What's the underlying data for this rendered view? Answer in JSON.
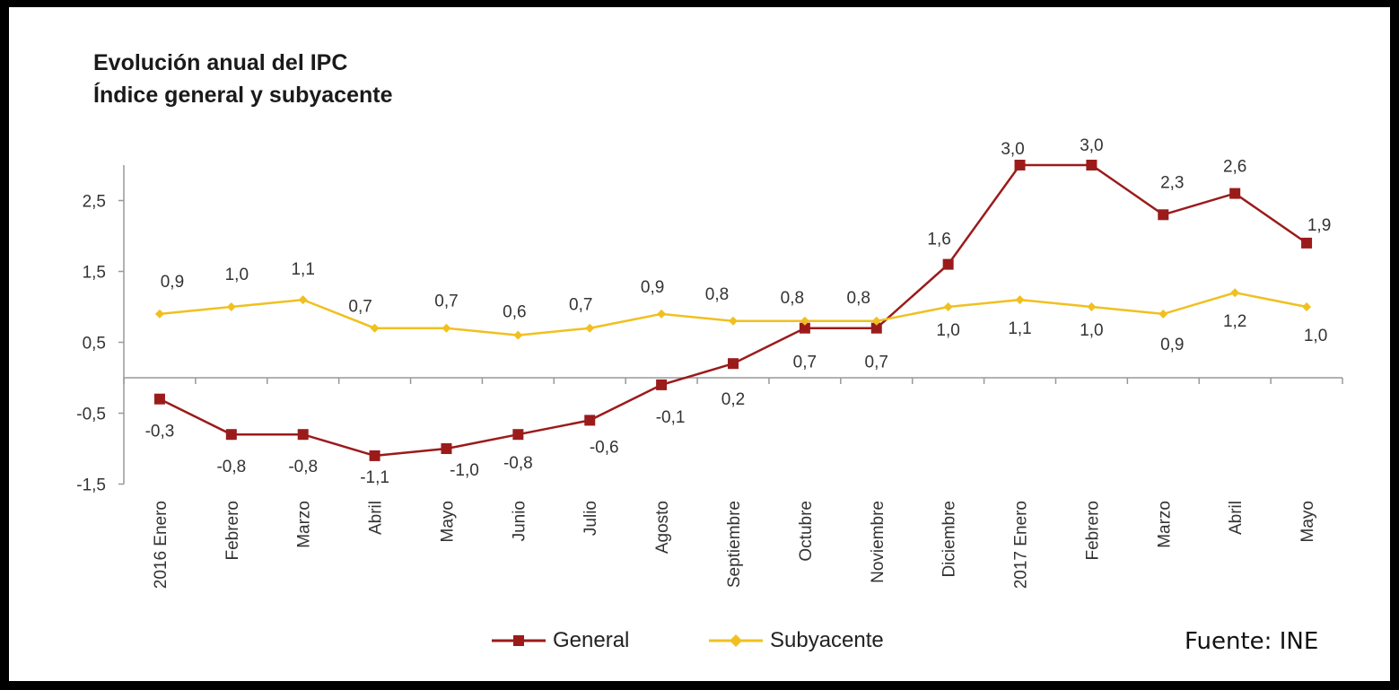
{
  "chart_data": {
    "type": "line",
    "title": "Evolución anual del IPC",
    "subtitle": "Índice general y subyacente",
    "categories": [
      "2016 Enero",
      "Febrero",
      "Marzo",
      "Abril",
      "Mayo",
      "Junio",
      "Julio",
      "Agosto",
      "Septiembre",
      "Octubre",
      "Noviembre",
      "Diciembre",
      "2017 Enero",
      "Febrero",
      "Marzo",
      "Abril",
      "Mayo"
    ],
    "series": [
      {
        "name": "General",
        "color": "#9b1b1b",
        "marker": "square",
        "values": [
          -0.3,
          -0.8,
          -0.8,
          -1.1,
          -1.0,
          -0.8,
          -0.6,
          -0.1,
          0.2,
          0.7,
          0.7,
          1.6,
          3.0,
          3.0,
          2.3,
          2.6,
          1.9
        ],
        "labels": [
          "-0,3",
          "-0,8",
          "-0,8",
          "-1,1",
          "-1,0",
          "-0,8",
          "-0,6",
          "-0,1",
          "0,2",
          "0,7",
          "0,7",
          "1,6",
          "3,0",
          "3,0",
          "2,3",
          "2,6",
          "1,9"
        ]
      },
      {
        "name": "Subyacente",
        "color": "#f0c020",
        "marker": "diamond",
        "values": [
          0.9,
          1.0,
          1.1,
          0.7,
          0.7,
          0.6,
          0.7,
          0.9,
          0.8,
          0.8,
          0.8,
          1.0,
          1.1,
          1.0,
          0.9,
          1.2,
          1.0
        ],
        "labels": [
          "0,9",
          "1,0",
          "1,1",
          "0,7",
          "0,7",
          "0,6",
          "0,7",
          "0,9",
          "0,8",
          "0,8",
          "0,8",
          "1,0",
          "1,1",
          "1,0",
          "0,9",
          "1,2",
          "1,0"
        ]
      }
    ],
    "yticks": [
      -1.5,
      -0.5,
      0.5,
      1.5,
      2.5
    ],
    "ytick_labels": [
      "-1,5",
      "-0,5",
      "0,5",
      "1,5",
      "2,5"
    ],
    "ylim": [
      -1.5,
      3.0
    ],
    "legend_position": "bottom-center",
    "source": "Fuente: INE"
  }
}
